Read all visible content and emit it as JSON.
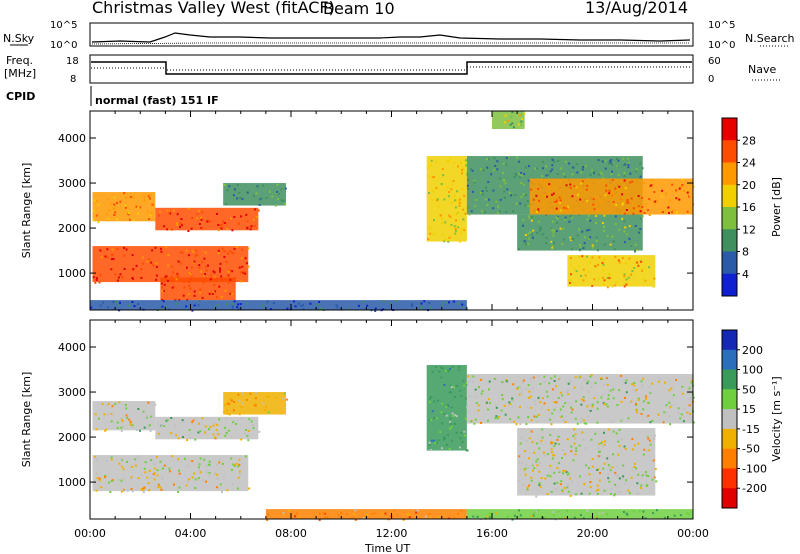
{
  "header": {
    "title": "Christmas Valley West (fitACF)",
    "beam": "Beam 10",
    "date": "13/Aug/2014"
  },
  "noise_panel": {
    "left_label": "N.Sky",
    "right_label": "N.Search",
    "left_ticks": [
      "10^5",
      "10^0"
    ],
    "right_ticks": [
      "10^5",
      "10^0"
    ]
  },
  "freq_panel": {
    "left_label_1": "Freq.",
    "left_label_2": "[MHz]",
    "right_label": "Nave",
    "left_ticks": [
      "18",
      "8"
    ],
    "right_ticks": [
      "60",
      "0"
    ]
  },
  "cpid_panel": {
    "label": "CPID",
    "mode": "normal (fast) 151 IF"
  },
  "colorbars": {
    "power": {
      "label": "Power [dB]",
      "ticks": [
        "28",
        "24",
        "20",
        "16",
        "12",
        "8",
        "4"
      ],
      "colors": [
        "#e60000",
        "#ff4d00",
        "#ff9900",
        "#f0d000",
        "#7fbf3f",
        "#3f8f5f",
        "#2a5aa8",
        "#1020d0"
      ]
    },
    "velocity": {
      "label": "Velocity [m s⁻¹]",
      "ticks": [
        "200",
        "100",
        "50",
        "15",
        "-15",
        "-50",
        "-100",
        "-200"
      ],
      "colors": [
        "#1428b4",
        "#2a6ebc",
        "#3a9a5a",
        "#6fcf3f",
        "#c0c0c0",
        "#f0b000",
        "#ff8000",
        "#ff3000",
        "#e00000"
      ]
    }
  },
  "chart_data": [
    {
      "type": "heatmap",
      "name": "power",
      "ylabel": "Slant Range [km]",
      "xlabel": "Time UT",
      "xticks": [
        "00:00",
        "04:00",
        "08:00",
        "12:00",
        "16:00",
        "20:00",
        "00:00"
      ],
      "yticks": [
        "1000",
        "2000",
        "3000",
        "4000"
      ],
      "xlim_hours": [
        0,
        24
      ],
      "ylim_km": [
        180,
        4600
      ],
      "echo_regions": [
        {
          "t0": 0.1,
          "t1": 2.6,
          "r0": 2150,
          "r1": 2800,
          "power_db": 22
        },
        {
          "t0": 2.6,
          "t1": 6.7,
          "r0": 1950,
          "r1": 2450,
          "power_db": 26
        },
        {
          "t0": 0.1,
          "t1": 6.3,
          "r0": 800,
          "r1": 1600,
          "power_db": 28
        },
        {
          "t0": 2.8,
          "t1": 5.8,
          "r0": 400,
          "r1": 900,
          "power_db": 28
        },
        {
          "t0": 5.3,
          "t1": 7.8,
          "r0": 2500,
          "r1": 3000,
          "power_db": 10
        },
        {
          "t0": 13.4,
          "t1": 15.0,
          "r0": 1700,
          "r1": 3600,
          "power_db": 18
        },
        {
          "t0": 16.0,
          "t1": 17.3,
          "r0": 4200,
          "r1": 4600,
          "power_db": 16
        },
        {
          "t0": 15.0,
          "t1": 22.0,
          "r0": 2300,
          "r1": 3600,
          "power_db": 10
        },
        {
          "t0": 17.5,
          "t1": 24.0,
          "r0": 2300,
          "r1": 3100,
          "power_db": 24
        },
        {
          "t0": 17.0,
          "t1": 22.0,
          "r0": 1500,
          "r1": 2300,
          "power_db": 12
        },
        {
          "t0": 19.0,
          "t1": 22.5,
          "r0": 700,
          "r1": 1400,
          "power_db": 20
        },
        {
          "t0": 0.0,
          "t1": 15.0,
          "r0": 180,
          "r1": 400,
          "power_db": 6
        }
      ]
    },
    {
      "type": "heatmap",
      "name": "velocity",
      "ylabel": "Slant Range [km]",
      "xlabel": "Time UT",
      "xticks": [
        "00:00",
        "04:00",
        "08:00",
        "12:00",
        "16:00",
        "20:00",
        "00:00"
      ],
      "yticks": [
        "1000",
        "2000",
        "3000",
        "4000"
      ],
      "xlim_hours": [
        0,
        24
      ],
      "ylim_km": [
        180,
        4600
      ],
      "echo_regions": [
        {
          "t0": 0.1,
          "t1": 2.6,
          "r0": 2150,
          "r1": 2800,
          "velocity": 0
        },
        {
          "t0": 2.6,
          "t1": 6.7,
          "r0": 1950,
          "r1": 2450,
          "velocity": 0
        },
        {
          "t0": 0.1,
          "t1": 6.3,
          "r0": 800,
          "r1": 1600,
          "velocity": -10
        },
        {
          "t0": 5.3,
          "t1": 7.8,
          "r0": 2500,
          "r1": 3000,
          "velocity": -40
        },
        {
          "t0": 13.4,
          "t1": 15.0,
          "r0": 1700,
          "r1": 3600,
          "velocity": 50
        },
        {
          "t0": 15.0,
          "t1": 24.0,
          "r0": 2300,
          "r1": 3400,
          "velocity": 0
        },
        {
          "t0": 17.0,
          "t1": 22.5,
          "r0": 700,
          "r1": 2200,
          "velocity": 0
        },
        {
          "t0": 7.0,
          "t1": 15.0,
          "r0": 180,
          "r1": 400,
          "velocity": -60
        },
        {
          "t0": 15.0,
          "t1": 24.0,
          "r0": 180,
          "r1": 400,
          "velocity": 40
        }
      ]
    }
  ]
}
